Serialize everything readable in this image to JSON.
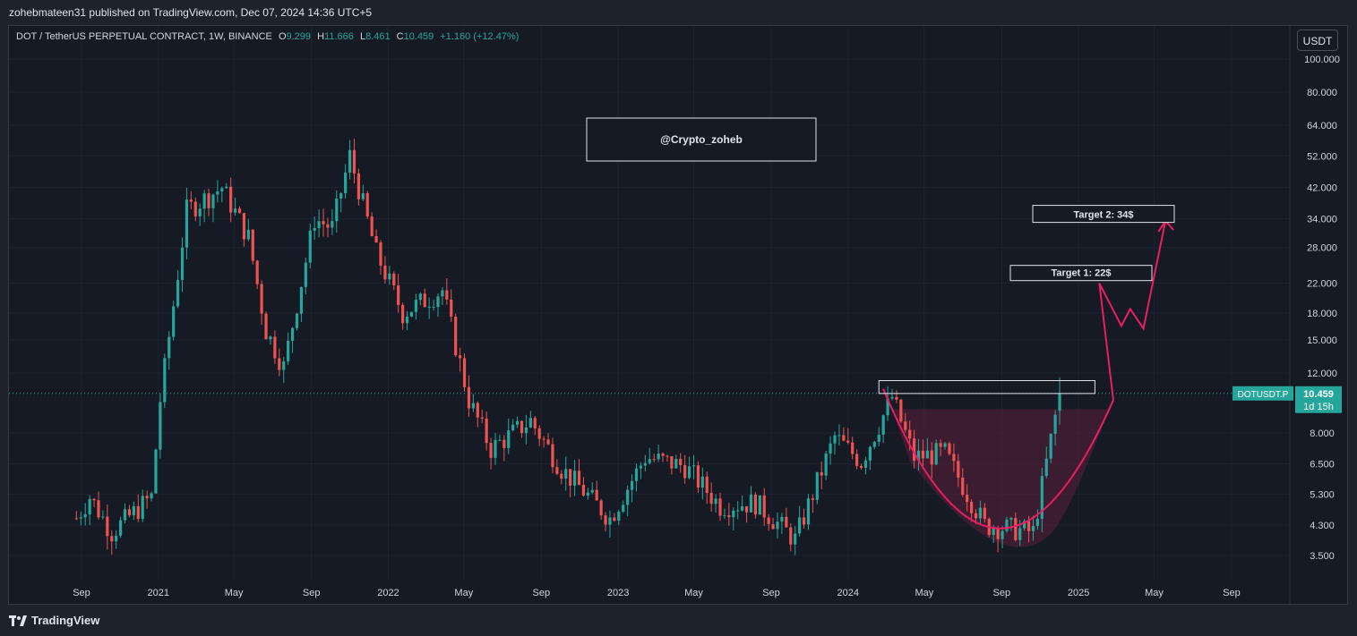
{
  "publish_line": "zohebmateen31 published on TradingView.com, Dec 07, 2024 14:36 UTC+5",
  "footer": {
    "brand": "TradingView"
  },
  "legend": {
    "symbol": "DOT / TetherUS PERPETUAL CONTRACT, 1W, BINANCE",
    "o_label": "O",
    "o_value": "9.299",
    "h_label": "H",
    "h_value": "11.666",
    "l_label": "L",
    "l_value": "8.461",
    "c_label": "C",
    "c_value": "10.459",
    "change": "+1.160 (+12.47%)"
  },
  "currency_button": "USDT",
  "colors": {
    "up": "#26a69a",
    "down": "#ef5350",
    "arrow": "#e91e63",
    "cup_fill": "#5c1f3a",
    "background": "#161a25"
  },
  "chart_data": {
    "type": "candlestick",
    "timeframe": "1W",
    "scale": "log",
    "ylim": [
      3.2,
      110
    ],
    "yticks": [
      "100.000",
      "80.000",
      "64.000",
      "52.000",
      "42.000",
      "34.000",
      "28.000",
      "22.000",
      "18.000",
      "15.000",
      "12.000",
      "8.000",
      "6.500",
      "5.300",
      "4.300",
      "3.500"
    ],
    "xticks": [
      "Sep",
      "2021",
      "May",
      "Sep",
      "2022",
      "May",
      "Sep",
      "2023",
      "May",
      "Sep",
      "2024",
      "May",
      "Sep",
      "2025",
      "May",
      "Sep"
    ],
    "xtick_dates": [
      "2020-09-01",
      "2021-01-01",
      "2021-05-01",
      "2021-09-01",
      "2022-01-01",
      "2022-05-01",
      "2022-09-01",
      "2023-01-01",
      "2023-05-01",
      "2023-09-01",
      "2024-01-01",
      "2024-05-01",
      "2024-09-01",
      "2025-01-01",
      "2025-05-01",
      "2025-09-01"
    ],
    "price_path": [
      [
        "2020-08-24",
        4.5
      ],
      [
        "2020-09-14",
        5.2
      ],
      [
        "2020-10-19",
        4.1
      ],
      [
        "2020-12-21",
        5.2
      ],
      [
        "2021-01-04",
        10.0
      ],
      [
        "2021-02-15",
        36.0
      ],
      [
        "2021-04-12",
        42.0
      ],
      [
        "2021-05-24",
        30.0
      ],
      [
        "2021-06-21",
        16.0
      ],
      [
        "2021-07-19",
        12.5
      ],
      [
        "2021-09-06",
        34.0
      ],
      [
        "2021-10-04",
        32.0
      ],
      [
        "2021-11-01",
        52.0
      ],
      [
        "2021-12-13",
        27.0
      ],
      [
        "2022-01-24",
        18.0
      ],
      [
        "2022-03-28",
        21.0
      ],
      [
        "2022-05-09",
        10.0
      ],
      [
        "2022-06-13",
        7.2
      ],
      [
        "2022-08-15",
        8.7
      ],
      [
        "2022-10-03",
        6.3
      ],
      [
        "2022-12-19",
        4.5
      ],
      [
        "2023-02-13",
        6.8
      ],
      [
        "2023-04-17",
        6.4
      ],
      [
        "2023-06-12",
        4.9
      ],
      [
        "2023-08-07",
        5.0
      ],
      [
        "2023-10-09",
        3.9
      ],
      [
        "2023-12-11",
        7.8
      ],
      [
        "2024-01-22",
        6.6
      ],
      [
        "2024-03-11",
        10.2
      ],
      [
        "2024-04-15",
        6.8
      ],
      [
        "2024-06-03",
        7.0
      ],
      [
        "2024-08-05",
        4.3
      ],
      [
        "2024-10-21",
        4.1
      ],
      [
        "2024-12-02",
        10.459
      ]
    ],
    "current_price": {
      "label": "DOTUSDT.P",
      "value": "10.459",
      "countdown": "1d 15h"
    },
    "annotations": {
      "watermark": "@Crypto_zoheb",
      "target1": "Target 1: 22$",
      "target2": "Target 2: 34$"
    }
  }
}
